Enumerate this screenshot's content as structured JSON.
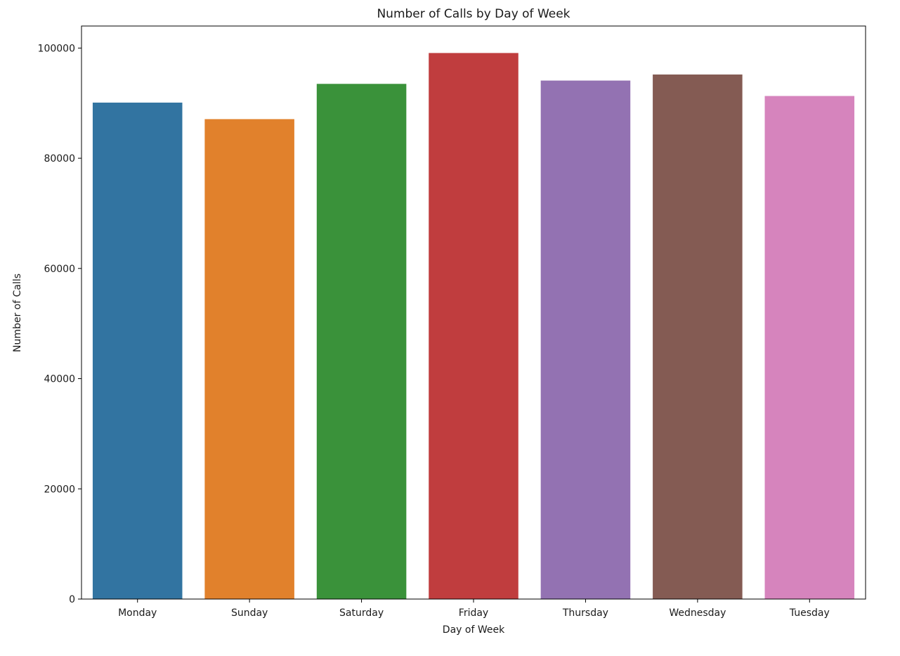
{
  "chart_data": {
    "type": "bar",
    "title": "Number of Calls by Day of Week",
    "xlabel": "Day of Week",
    "ylabel": "Number of Calls",
    "categories": [
      "Monday",
      "Sunday",
      "Saturday",
      "Friday",
      "Thursday",
      "Wednesday",
      "Tuesday"
    ],
    "values": [
      90100,
      87100,
      93500,
      99100,
      94100,
      95200,
      91300
    ],
    "colors": [
      "#3274a1",
      "#e1812c",
      "#3a923a",
      "#c03d3e",
      "#9372b2",
      "#845b53",
      "#d684bd"
    ],
    "ylim": [
      0,
      104000
    ],
    "yticks": [
      0,
      20000,
      40000,
      60000,
      80000,
      100000
    ],
    "grid": false,
    "legend": false
  }
}
